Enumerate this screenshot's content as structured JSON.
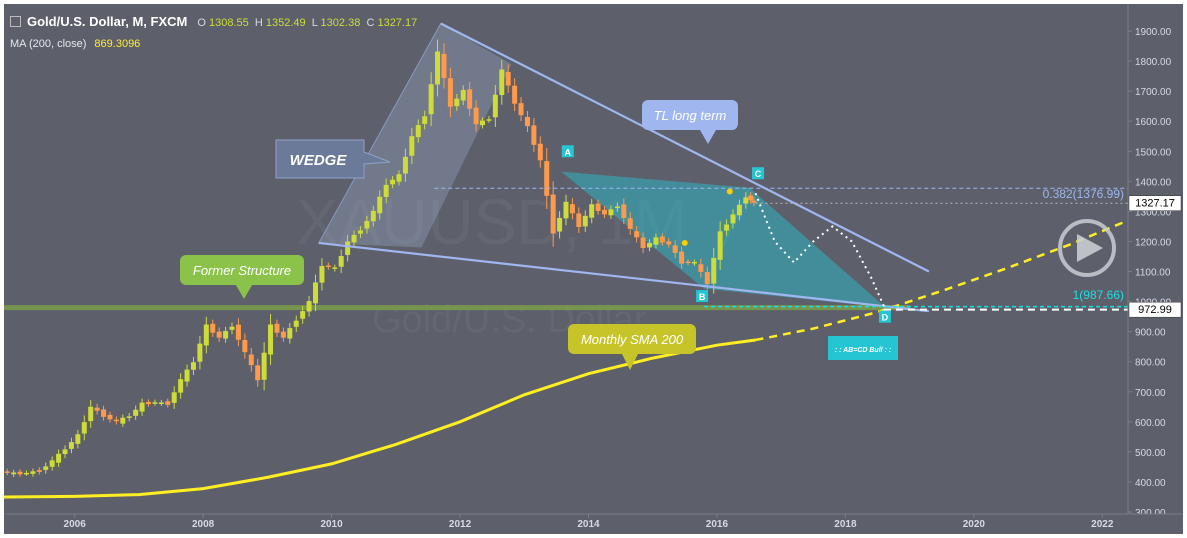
{
  "header": {
    "title": "Gold/U.S. Dollar, M, FXCM",
    "ohlc": {
      "o_label": "O",
      "o": "1308.55",
      "h_label": "H",
      "h": "1352.49",
      "l_label": "L",
      "l": "1302.38",
      "c_label": "C",
      "c": "1327.17"
    },
    "ma_label": "MA (200, close)",
    "ma_value": "869.3096"
  },
  "watermark": {
    "symbol": "XAUUSD, 1M",
    "name": "Gold/U.S. Dollar"
  },
  "colors": {
    "up": "#cddc39",
    "down": "#ff9a4d",
    "sma": "#ffee22",
    "trendline": "#9fb6ee",
    "fibline": "#19e0e0",
    "structure": "#7c9b4a",
    "harmonic": "#25c5d4"
  },
  "chart_data": {
    "type": "candlestick",
    "title": "Gold/U.S. Dollar, M, FXCM",
    "x_axis": {
      "ticks": [
        "2006",
        "2008",
        "2010",
        "2012",
        "2014",
        "2016",
        "2018",
        "2020",
        "2022"
      ],
      "range": [
        2004.9,
        2022.4
      ]
    },
    "y_axis": {
      "ticks": [
        "1900.00",
        "1800.00",
        "1700.00",
        "1600.00",
        "1500.00",
        "1400.00",
        "1300.00",
        "1200.00",
        "1100.00",
        "1000.00",
        "900.00",
        "800.00",
        "700.00",
        "600.00",
        "500.00",
        "400.00",
        "300.00"
      ],
      "range": [
        285,
        1960
      ]
    },
    "price_labels": {
      "last": "1327.17",
      "support": "972.99"
    },
    "series": [
      {
        "name": "Monthly SMA 200",
        "type": "line",
        "points": [
          [
            2004.9,
            350
          ],
          [
            2006,
            352
          ],
          [
            2007,
            358
          ],
          [
            2008,
            378
          ],
          [
            2009,
            415
          ],
          [
            2010,
            460
          ],
          [
            2011,
            525
          ],
          [
            2012,
            600
          ],
          [
            2013,
            690
          ],
          [
            2014,
            760
          ],
          [
            2015,
            812
          ],
          [
            2016,
            855
          ],
          [
            2016.6,
            872
          ]
        ]
      },
      {
        "name": "SMA projection",
        "type": "line",
        "style": "dashed",
        "points": [
          [
            2016.6,
            872
          ],
          [
            2017.5,
            910
          ],
          [
            2018.5,
            965
          ],
          [
            2019.5,
            1035
          ],
          [
            2020.5,
            1110
          ],
          [
            2021.5,
            1190
          ],
          [
            2022.4,
            1270
          ]
        ]
      },
      {
        "name": "Price path (approx. monthly closes)",
        "type": "candles",
        "points": [
          [
            2004.9,
            435
          ],
          [
            2005.1,
            428
          ],
          [
            2005.3,
            430
          ],
          [
            2005.5,
            437
          ],
          [
            2005.7,
            470
          ],
          [
            2005.9,
            510
          ],
          [
            2006.1,
            555
          ],
          [
            2006.3,
            650
          ],
          [
            2006.5,
            620
          ],
          [
            2006.7,
            600
          ],
          [
            2006.9,
            620
          ],
          [
            2007.1,
            660
          ],
          [
            2007.3,
            665
          ],
          [
            2007.5,
            660
          ],
          [
            2007.7,
            740
          ],
          [
            2007.9,
            800
          ],
          [
            2008.1,
            920
          ],
          [
            2008.3,
            880
          ],
          [
            2008.5,
            920
          ],
          [
            2008.7,
            830
          ],
          [
            2008.9,
            740
          ],
          [
            2009.1,
            920
          ],
          [
            2009.3,
            880
          ],
          [
            2009.5,
            940
          ],
          [
            2009.7,
            1000
          ],
          [
            2009.9,
            1120
          ],
          [
            2010.1,
            1110
          ],
          [
            2010.3,
            1200
          ],
          [
            2010.5,
            1240
          ],
          [
            2010.7,
            1300
          ],
          [
            2010.9,
            1390
          ],
          [
            2011.1,
            1420
          ],
          [
            2011.3,
            1550
          ],
          [
            2011.5,
            1620
          ],
          [
            2011.7,
            1830
          ],
          [
            2011.9,
            1650
          ],
          [
            2012.1,
            1700
          ],
          [
            2012.3,
            1590
          ],
          [
            2012.5,
            1610
          ],
          [
            2012.7,
            1770
          ],
          [
            2012.9,
            1660
          ],
          [
            2013.1,
            1580
          ],
          [
            2013.3,
            1470
          ],
          [
            2013.5,
            1230
          ],
          [
            2013.7,
            1330
          ],
          [
            2013.9,
            1250
          ],
          [
            2014.1,
            1320
          ],
          [
            2014.3,
            1290
          ],
          [
            2014.5,
            1320
          ],
          [
            2014.7,
            1240
          ],
          [
            2014.9,
            1180
          ],
          [
            2015.1,
            1210
          ],
          [
            2015.3,
            1190
          ],
          [
            2015.5,
            1130
          ],
          [
            2015.7,
            1130
          ],
          [
            2015.9,
            1060
          ],
          [
            2016.1,
            1230
          ],
          [
            2016.3,
            1290
          ],
          [
            2016.5,
            1350
          ],
          [
            2016.6,
            1327
          ]
        ]
      }
    ],
    "annotations": {
      "wedge": "WEDGE",
      "tl_long_term": "TL long term",
      "former_structure": "Former Structure",
      "monthly_sma": "Monthly SMA 200",
      "fib_382": "0.382(1376.99)",
      "fib_1": "1(987.66)",
      "abcd": ": : AB=CD Bull : :",
      "points": {
        "a": "A",
        "b": "B",
        "c": "C",
        "d": "D"
      },
      "point_prices": {
        "a": 1430,
        "b": 1045,
        "c": 1377,
        "d": 983
      }
    }
  }
}
